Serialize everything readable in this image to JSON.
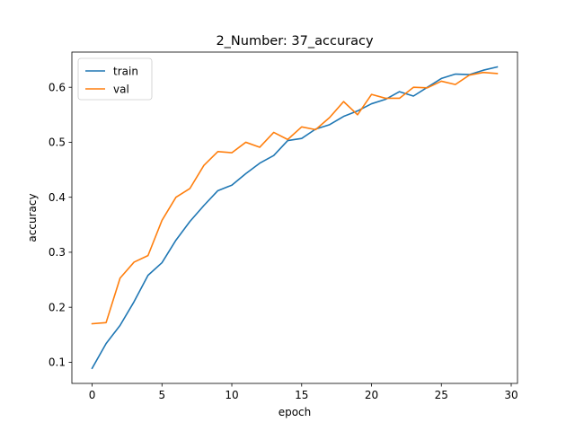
{
  "chart_data": {
    "type": "line",
    "title": "2_Number: 37_accuracy",
    "xlabel": "epoch",
    "ylabel": "accuracy",
    "xlim": [
      -1.45,
      30.45
    ],
    "ylim": [
      0.0615,
      0.664
    ],
    "xticks": [
      0,
      5,
      10,
      15,
      20,
      25,
      30
    ],
    "yticks": [
      0.1,
      0.2,
      0.3,
      0.4,
      0.5,
      0.6
    ],
    "ytick_labels": [
      "0.1",
      "0.2",
      "0.3",
      "0.4",
      "0.5",
      "0.6"
    ],
    "legend_position": "upper-left",
    "grid": false,
    "x": [
      0,
      1,
      2,
      3,
      4,
      5,
      6,
      7,
      8,
      9,
      10,
      11,
      12,
      13,
      14,
      15,
      16,
      17,
      18,
      19,
      20,
      21,
      22,
      23,
      24,
      25,
      26,
      27,
      28,
      29
    ],
    "series": [
      {
        "name": "train",
        "color": "#1f77b4",
        "values": [
          0.089,
          0.134,
          0.167,
          0.21,
          0.258,
          0.281,
          0.322,
          0.356,
          0.385,
          0.412,
          0.422,
          0.443,
          0.462,
          0.476,
          0.503,
          0.507,
          0.524,
          0.532,
          0.547,
          0.557,
          0.57,
          0.578,
          0.592,
          0.584,
          0.6,
          0.616,
          0.624,
          0.623,
          0.631,
          0.637
        ]
      },
      {
        "name": "val",
        "color": "#ff7f0e",
        "values": [
          0.17,
          0.172,
          0.253,
          0.282,
          0.294,
          0.358,
          0.4,
          0.416,
          0.458,
          0.483,
          0.481,
          0.5,
          0.491,
          0.518,
          0.505,
          0.528,
          0.523,
          0.545,
          0.574,
          0.55,
          0.587,
          0.58,
          0.58,
          0.6,
          0.599,
          0.611,
          0.605,
          0.622,
          0.627,
          0.625
        ]
      }
    ]
  }
}
